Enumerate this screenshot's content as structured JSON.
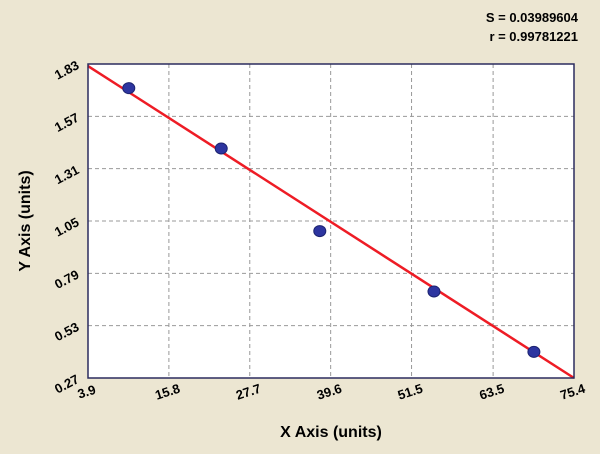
{
  "stats": {
    "s": "S = 0.03989604",
    "r": "r = 0.99781221"
  },
  "chart_data": {
    "type": "scatter",
    "title": "",
    "xlabel": "X Axis (units)",
    "ylabel": "Y Axis (units)",
    "xlim": [
      3.9,
      75.4
    ],
    "ylim": [
      0.27,
      1.83
    ],
    "x_ticks": [
      "3.9",
      "15.8",
      "27.7",
      "39.6",
      "51.5",
      "63.5",
      "75.4"
    ],
    "y_ticks": [
      "0.27",
      "0.53",
      "0.79",
      "1.05",
      "1.31",
      "1.57",
      "1.83"
    ],
    "grid": true,
    "legend": false,
    "points": [
      {
        "x": 9.9,
        "y": 1.71
      },
      {
        "x": 23.5,
        "y": 1.41
      },
      {
        "x": 38.0,
        "y": 1.0
      },
      {
        "x": 54.8,
        "y": 0.7
      },
      {
        "x": 69.5,
        "y": 0.4
      }
    ],
    "regression_line": {
      "x1": 3.9,
      "y1": 1.82,
      "x2": 75.4,
      "y2": 0.27
    },
    "colors": {
      "background": "#ece6d2",
      "plot_bg": "#ffffff",
      "grid": "#999999",
      "frame": "#2b2b5e",
      "line": "#ee1c25",
      "point": "#2d35a0",
      "point_edge": "#1c2370",
      "text": "#000000"
    }
  }
}
